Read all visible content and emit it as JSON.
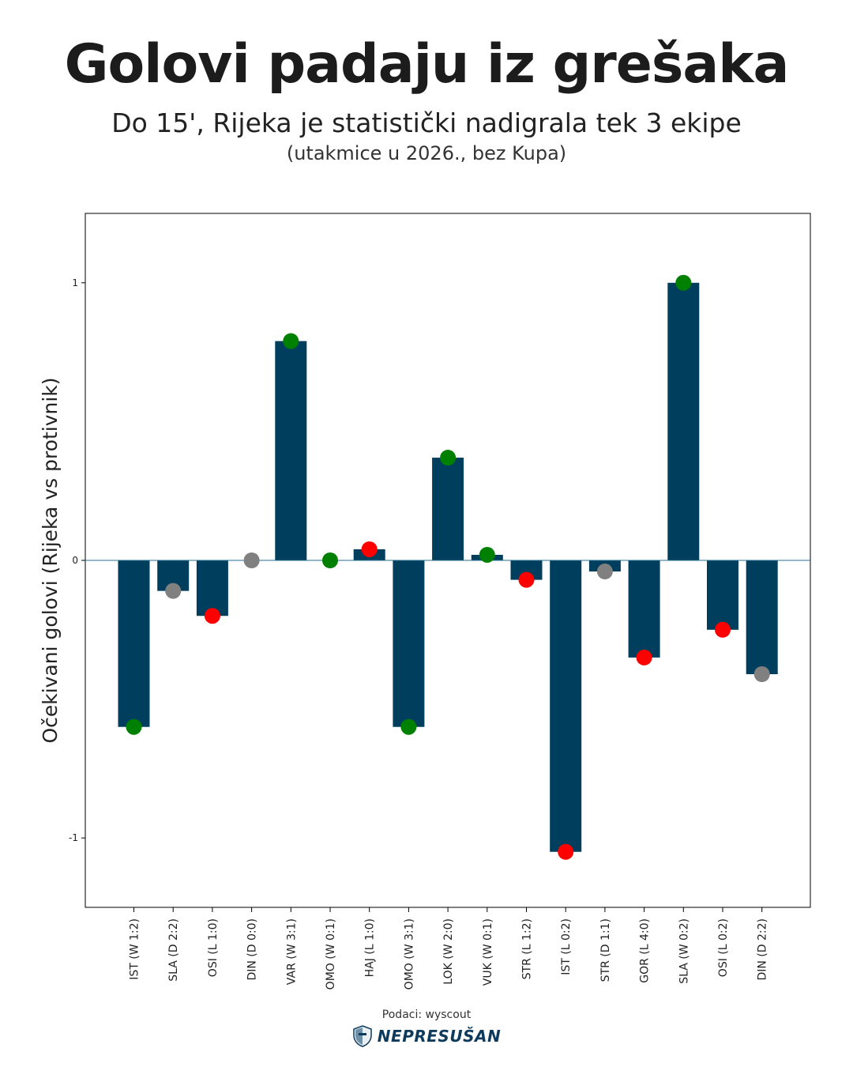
{
  "title": "Golovi padaju iz grešaka",
  "subtitle": "Do 15', Rijeka je statistički nadigrala tek 3 ekipe",
  "subsubtitle": "(utakmice u 2026., bez Kupa)",
  "source": "Podaci: wyscout",
  "brand": "NEPRESUŠAN",
  "colors": {
    "bar": "#003e5e",
    "win": "#008000",
    "loss": "#ff0000",
    "draw": "#808080",
    "zero_line": "#2a6f8f",
    "axis": "#000000"
  },
  "chart_data": {
    "type": "bar",
    "ylabel": "Očekivani golovi (Rijeka vs protivnik)",
    "ylim": [
      -1.25,
      1.25
    ],
    "yticks": [
      -1,
      0,
      1
    ],
    "ytick_labels": [
      "-1",
      "0",
      "1"
    ],
    "grid": false,
    "categories": [
      "IST (W 1:2)",
      "SLA (D 2:2)",
      "OSI (L 1:0)",
      "DIN (D 0:0)",
      "VAR (W 3:1)",
      "OMO (W 0:1)",
      "HAJ (L 1:0)",
      "OMO (W 3:1)",
      "LOK (W 2:0)",
      "VUK (W 0:1)",
      "STR (L 1:2)",
      "IST (L 0:2)",
      "STR (D 1:1)",
      "GOR (L 4:0)",
      "SLA (W 0:2)",
      "OSI (L 0:2)",
      "DIN (D 2:2)"
    ],
    "values": [
      -0.6,
      -0.11,
      -0.2,
      0.0,
      0.79,
      0.0,
      0.04,
      -0.6,
      0.37,
      0.02,
      -0.07,
      -1.05,
      -0.04,
      -0.35,
      1.0,
      -0.25,
      -0.41
    ],
    "results": [
      "W",
      "D",
      "L",
      "D",
      "W",
      "W",
      "L",
      "W",
      "W",
      "W",
      "L",
      "L",
      "D",
      "L",
      "W",
      "L",
      "D"
    ]
  }
}
